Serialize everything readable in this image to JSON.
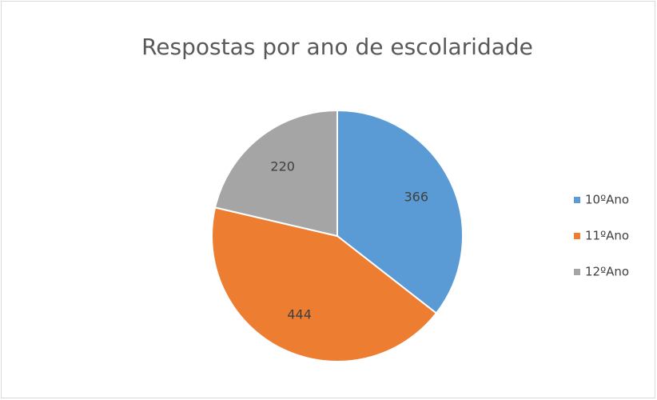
{
  "chart_data": {
    "type": "pie",
    "title": "Respostas por ano de escolaridade",
    "categories": [
      "10ºAno",
      "11ºAno",
      "12ºAno"
    ],
    "values": [
      366,
      444,
      220
    ],
    "colors": [
      "#5b9bd5",
      "#ed7d31",
      "#a5a5a5"
    ],
    "legend": "right"
  }
}
